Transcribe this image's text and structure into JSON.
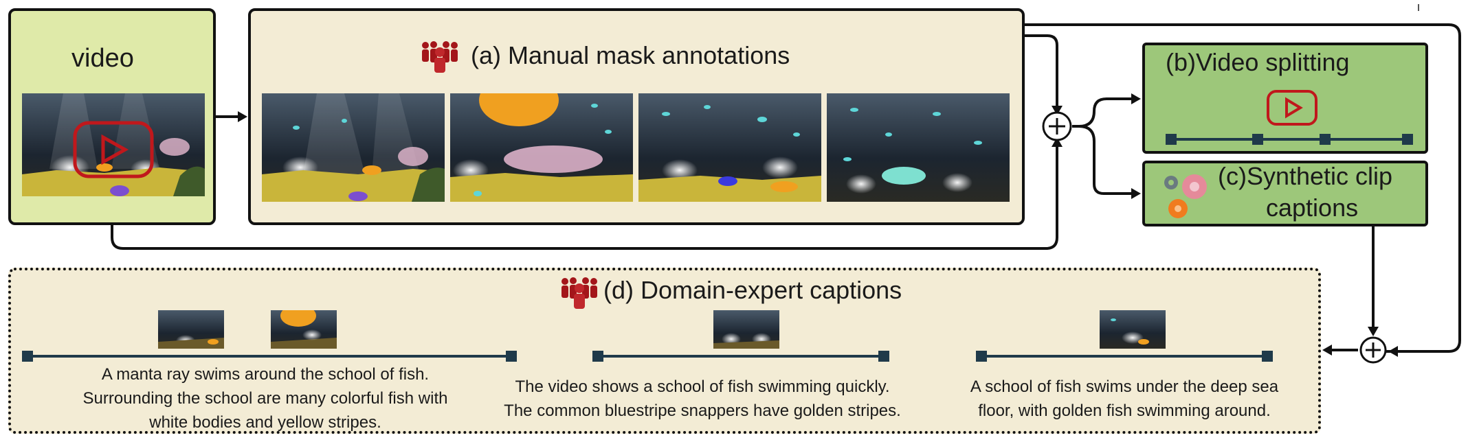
{
  "video": {
    "title": "video"
  },
  "manual": {
    "title": "(a) Manual mask annotations"
  },
  "split": {
    "title": "(b)Video splitting"
  },
  "synth": {
    "line1": "(c)Synthetic clip",
    "line2": "captions"
  },
  "expert": {
    "title": "(d) Domain-expert captions",
    "captions": [
      {
        "line1": "A manta ray swims around the school of fish.",
        "line2": "Surrounding the school are many colorful fish with",
        "line3": "white bodies and yellow stripes."
      },
      {
        "line1": "The video shows a school of fish swimming quickly.",
        "line2": "The common bluestripe snappers have golden stripes."
      },
      {
        "line1": "A school of fish swims under the deep sea",
        "line2": "floor, with golden fish swimming around."
      }
    ]
  },
  "colors": {
    "video_bg": "#dfeaa9",
    "panel_bg": "#f3ecd5",
    "green_box": "#9dc77a",
    "timeline": "#1f3a4a",
    "accent_red": "#b01818",
    "gear_gray": "#6a7a80",
    "gear_pink": "#e58a9a",
    "gear_orange": "#f07b1e"
  },
  "icons": [
    "people-icon",
    "play-icon",
    "gear-icon",
    "plus-icon"
  ]
}
